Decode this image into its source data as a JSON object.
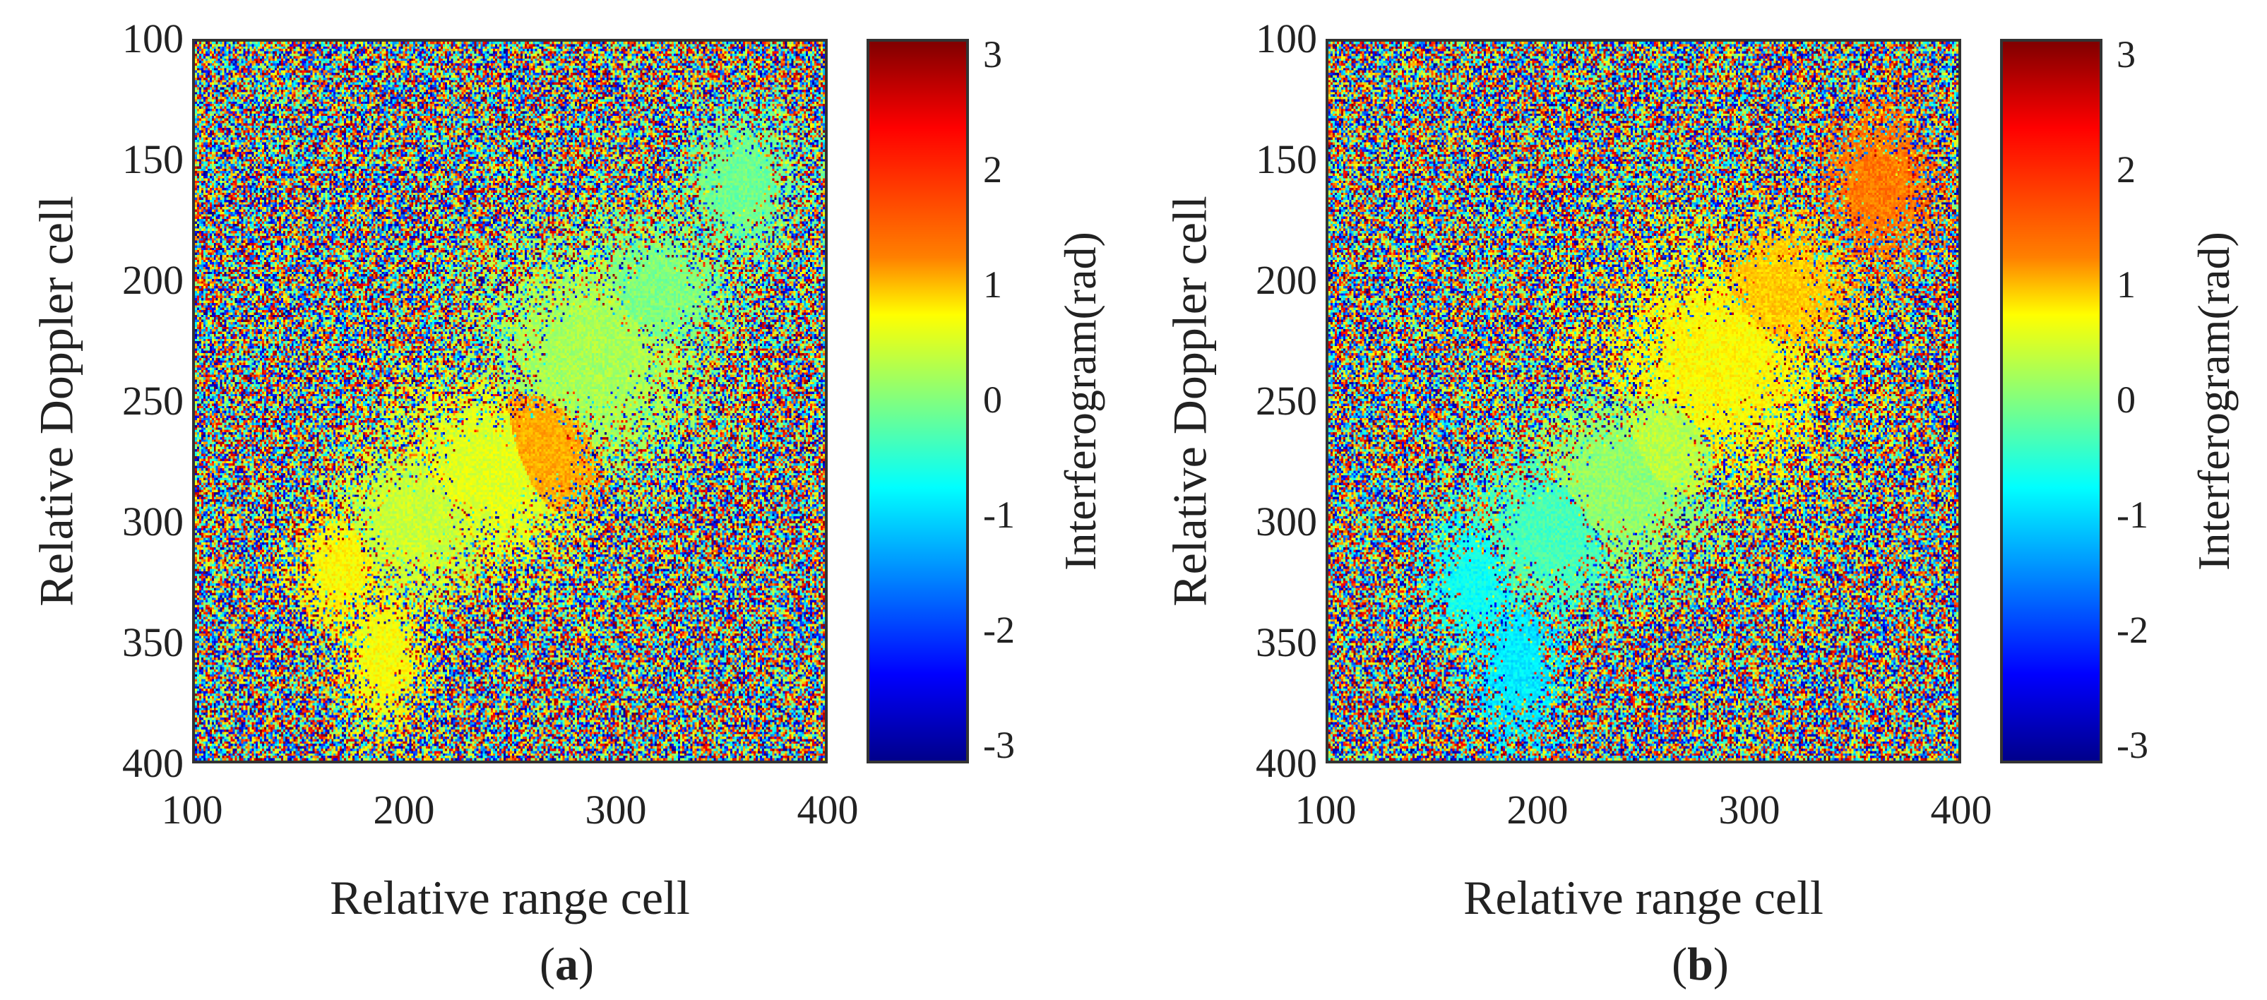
{
  "chart_data": [
    {
      "type": "heatmap",
      "panel": "a",
      "caption_letter": "a",
      "xlabel": "Relative range cell",
      "ylabel": "Relative Doppler cell",
      "xlim": [
        100,
        400
      ],
      "ylim": [
        100,
        400
      ],
      "y_axis_direction": "down",
      "xticks": [
        "100",
        "200",
        "300",
        "400"
      ],
      "yticks": [
        "100",
        "150",
        "200",
        "250",
        "300",
        "350",
        "400"
      ],
      "colorbar": {
        "label": "Interferogram(rad)",
        "range": [
          -3.14,
          3.14
        ],
        "ticks": [
          "3",
          "2",
          "1",
          "0",
          "-1",
          "-2",
          "-3"
        ],
        "colormap": "jet"
      },
      "background": "uniform random phase noise",
      "target_regions": [
        {
          "center": [
            360,
            160
          ],
          "size": [
            30,
            35
          ],
          "phase": -0.1
        },
        {
          "center": [
            320,
            205
          ],
          "size": [
            40,
            35
          ],
          "phase": 0.0
        },
        {
          "center": [
            290,
            230
          ],
          "size": [
            60,
            55
          ],
          "phase": 0.25
        },
        {
          "center": [
            265,
            270
          ],
          "size": [
            35,
            40
          ],
          "phase": 1.3
        },
        {
          "center": [
            240,
            280
          ],
          "size": [
            55,
            45
          ],
          "phase": 0.6
        },
        {
          "center": [
            205,
            300
          ],
          "size": [
            45,
            40
          ],
          "phase": 0.45
        },
        {
          "center": [
            170,
            320
          ],
          "size": [
            25,
            30
          ],
          "phase": 0.8
        },
        {
          "center": [
            190,
            355
          ],
          "size": [
            22,
            35
          ],
          "phase": 0.75
        }
      ]
    },
    {
      "type": "heatmap",
      "panel": "b",
      "caption_letter": "b",
      "xlabel": "Relative range cell",
      "ylabel": "Relative Doppler cell",
      "xlim": [
        100,
        400
      ],
      "ylim": [
        100,
        400
      ],
      "y_axis_direction": "down",
      "xticks": [
        "100",
        "200",
        "300",
        "400"
      ],
      "yticks": [
        "100",
        "150",
        "200",
        "250",
        "300",
        "350",
        "400"
      ],
      "colorbar": {
        "label": "Interferogram(rad)",
        "range": [
          -3.14,
          3.14
        ],
        "ticks": [
          "3",
          "2",
          "1",
          "0",
          "-1",
          "-2",
          "-3"
        ],
        "colormap": "jet"
      },
      "background": "uniform random phase noise",
      "target_regions": [
        {
          "center": [
            362,
            160
          ],
          "size": [
            28,
            35
          ],
          "phase": 1.6
        },
        {
          "center": [
            315,
            205
          ],
          "size": [
            40,
            35
          ],
          "phase": 1.1
        },
        {
          "center": [
            285,
            235
          ],
          "size": [
            60,
            55
          ],
          "phase": 0.8
        },
        {
          "center": [
            260,
            270
          ],
          "size": [
            35,
            40
          ],
          "phase": 0.35
        },
        {
          "center": [
            240,
            285
          ],
          "size": [
            55,
            45
          ],
          "phase": 0.1
        },
        {
          "center": [
            205,
            305
          ],
          "size": [
            45,
            40
          ],
          "phase": -0.35
        },
        {
          "center": [
            170,
            325
          ],
          "size": [
            25,
            30
          ],
          "phase": -0.7
        },
        {
          "center": [
            190,
            360
          ],
          "size": [
            22,
            35
          ],
          "phase": -0.9
        }
      ]
    }
  ]
}
